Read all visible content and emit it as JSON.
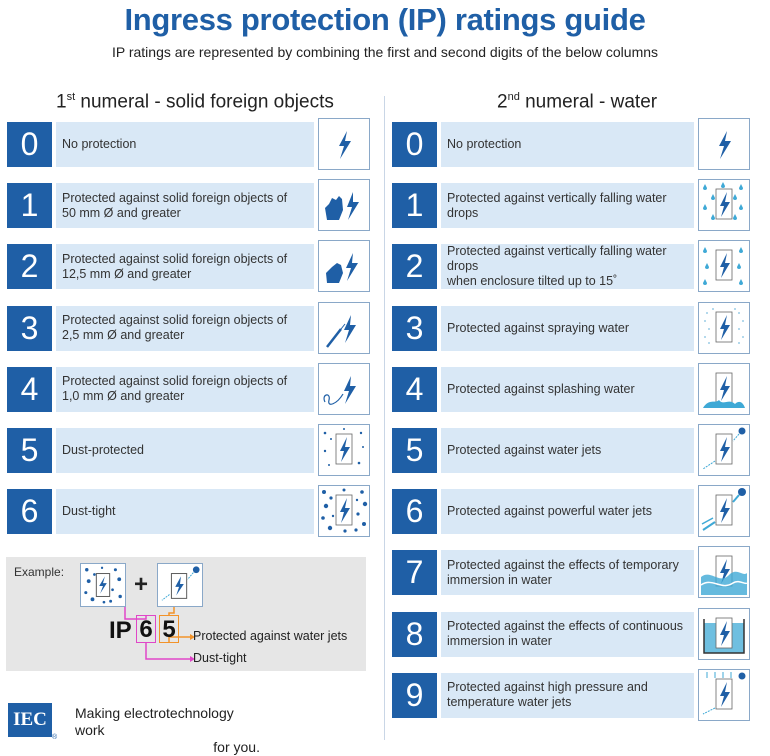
{
  "header": {
    "title": "Ingress protection (IP) ratings guide",
    "subtitle": "IP ratings are represented by combining the first and second digits of the below columns"
  },
  "left_column": {
    "heading_prefix": "1",
    "heading_sup": "st",
    "heading_suffix": " numeral - solid foreign objects",
    "rows": [
      {
        "digit": "0",
        "text": "No protection",
        "icon": "lightning-icon"
      },
      {
        "digit": "1",
        "text": "Protected against solid foreign objects of\n50 mm Ø and greater",
        "icon": "hand-icon"
      },
      {
        "digit": "2",
        "text": "Protected against solid foreign objects of\n12,5 mm Ø and greater",
        "icon": "finger-icon"
      },
      {
        "digit": "3",
        "text": "Protected against solid foreign objects of\n2,5 mm Ø and greater",
        "icon": "tool-icon"
      },
      {
        "digit": "4",
        "text": "Protected against solid foreign objects of\n1,0 mm Ø and greater",
        "icon": "wire-icon"
      },
      {
        "digit": "5",
        "text": "Dust-protected",
        "icon": "dust-icon"
      },
      {
        "digit": "6",
        "text": "Dust-tight",
        "icon": "dust-tight-icon"
      }
    ]
  },
  "right_column": {
    "heading_prefix": "2",
    "heading_sup": "nd",
    "heading_suffix": " numeral - water",
    "rows": [
      {
        "digit": "0",
        "text": "No protection",
        "icon": "lightning-icon"
      },
      {
        "digit": "1",
        "text": "Protected against vertically falling water drops",
        "icon": "drops-icon"
      },
      {
        "digit": "2",
        "text": "Protected against vertically falling water drops\nwhen enclosure tilted up to 15˚",
        "icon": "tilted-drops-icon"
      },
      {
        "digit": "3",
        "text": "Protected against spraying water",
        "icon": "spray-icon"
      },
      {
        "digit": "4",
        "text": "Protected against splashing water",
        "icon": "splash-icon"
      },
      {
        "digit": "5",
        "text": "Protected against water jets",
        "icon": "jet-icon"
      },
      {
        "digit": "6",
        "text": "Protected against powerful water jets",
        "icon": "powerful-jet-icon"
      },
      {
        "digit": "7",
        "text": "Protected against the effects of temporary\nimmersion in water",
        "icon": "immersion-icon"
      },
      {
        "digit": "8",
        "text": "Protected against the effects of continuous\nimmersion in water",
        "icon": "continuous-immersion-icon"
      },
      {
        "digit": "9",
        "text": "Protected against high pressure and\ntemperature water jets",
        "icon": "high-pressure-icon"
      }
    ]
  },
  "example": {
    "label": "Example:",
    "plus": "+",
    "ip": "IP",
    "first_digit": "6",
    "second_digit": "5",
    "note_second": "Protected against water jets",
    "note_first": "Dust-tight"
  },
  "footer": {
    "logo": "IEC",
    "registered": "®",
    "tagline_line1": "Making  electrotechnology work",
    "tagline_line2": "for you."
  },
  "colors": {
    "brand_blue": "#1f5fa6",
    "row_bg": "#d9e8f6",
    "water_cyan": "#3fa9d6",
    "example_magenta": "#e046c8",
    "example_orange": "#f2932a"
  }
}
